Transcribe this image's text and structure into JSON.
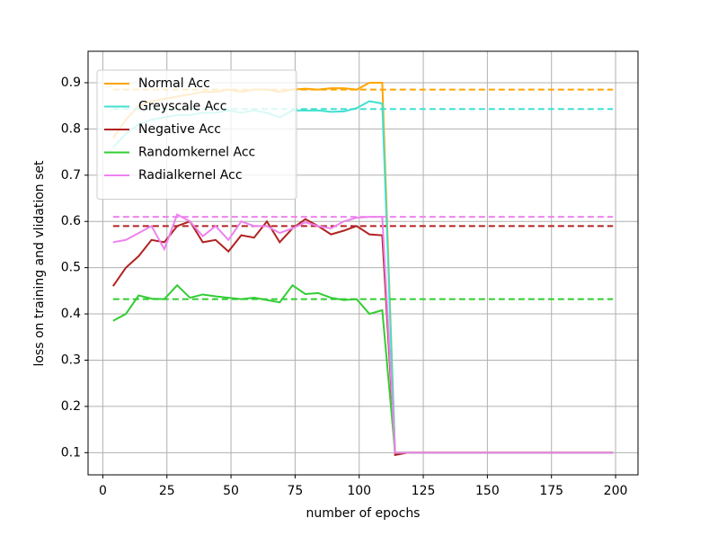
{
  "chart_data": {
    "type": "line",
    "xlabel": "number of epochs",
    "ylabel": "loss on training and vlidation set",
    "x": [
      4,
      9,
      14,
      19,
      24,
      29,
      34,
      39,
      44,
      49,
      54,
      59,
      64,
      69,
      74,
      79,
      84,
      89,
      94,
      99,
      104,
      109,
      114,
      119,
      124,
      129,
      134,
      139,
      144,
      149,
      154,
      159,
      164,
      169,
      174,
      179,
      184,
      189,
      194,
      199
    ],
    "xlim": [
      -5.75,
      208.75
    ],
    "xticks": [
      0,
      25,
      50,
      75,
      100,
      125,
      150,
      175,
      200
    ],
    "ylim": [
      0.052,
      0.968
    ],
    "yticks": [
      0.1,
      0.2,
      0.3,
      0.4,
      0.5,
      0.6,
      0.7,
      0.8,
      0.9
    ],
    "grid": true,
    "legend": "upper left",
    "series": [
      {
        "name": "Normal Acc",
        "color": "#ffa500",
        "dashed_value": 0.885,
        "values": [
          0.78,
          0.82,
          0.85,
          0.86,
          0.865,
          0.87,
          0.875,
          0.88,
          0.88,
          0.885,
          0.88,
          0.885,
          0.885,
          0.88,
          0.885,
          0.887,
          0.885,
          0.888,
          0.888,
          0.885,
          0.9,
          0.9,
          0.1,
          0.1,
          0.1,
          0.1,
          0.1,
          0.1,
          0.1,
          0.1,
          0.1,
          0.1,
          0.1,
          0.1,
          0.1,
          0.1,
          0.1,
          0.1,
          0.1,
          0.1
        ]
      },
      {
        "name": "Greyscale Acc",
        "color": "#40e0d0",
        "dashed_value": 0.843,
        "values": [
          0.76,
          0.79,
          0.81,
          0.82,
          0.825,
          0.83,
          0.83,
          0.835,
          0.835,
          0.84,
          0.835,
          0.84,
          0.835,
          0.825,
          0.84,
          0.84,
          0.84,
          0.837,
          0.838,
          0.845,
          0.86,
          0.855,
          0.1,
          0.1,
          0.1,
          0.1,
          0.1,
          0.1,
          0.1,
          0.1,
          0.1,
          0.1,
          0.1,
          0.1,
          0.1,
          0.1,
          0.1,
          0.1,
          0.1,
          0.1
        ]
      },
      {
        "name": "Negative Acc",
        "color": "#b22222",
        "dashed_value": 0.59,
        "values": [
          0.46,
          0.5,
          0.525,
          0.56,
          0.555,
          0.59,
          0.6,
          0.555,
          0.56,
          0.535,
          0.57,
          0.565,
          0.6,
          0.555,
          0.585,
          0.605,
          0.59,
          0.572,
          0.58,
          0.59,
          0.572,
          0.57,
          0.095,
          0.1,
          0.1,
          0.1,
          0.1,
          0.1,
          0.1,
          0.1,
          0.1,
          0.1,
          0.1,
          0.1,
          0.1,
          0.1,
          0.1,
          0.1,
          0.1,
          0.1
        ]
      },
      {
        "name": "Randomkernel Acc",
        "color": "#32cd32",
        "dashed_value": 0.432,
        "values": [
          0.385,
          0.4,
          0.44,
          0.433,
          0.432,
          0.462,
          0.435,
          0.442,
          0.438,
          0.435,
          0.432,
          0.435,
          0.43,
          0.425,
          0.462,
          0.443,
          0.445,
          0.435,
          0.43,
          0.432,
          0.4,
          0.408,
          0.1,
          0.1,
          0.1,
          0.1,
          0.1,
          0.1,
          0.1,
          0.1,
          0.1,
          0.1,
          0.1,
          0.1,
          0.1,
          0.1,
          0.1,
          0.1,
          0.1,
          0.1
        ]
      },
      {
        "name": "Radialkernel Acc",
        "color": "#ee82ee",
        "dashed_value": 0.61,
        "values": [
          0.555,
          0.56,
          0.575,
          0.59,
          0.54,
          0.615,
          0.6,
          0.568,
          0.59,
          0.56,
          0.6,
          0.59,
          0.59,
          0.575,
          0.585,
          0.598,
          0.59,
          0.585,
          0.6,
          0.608,
          0.61,
          0.61,
          0.1,
          0.1,
          0.1,
          0.1,
          0.1,
          0.1,
          0.1,
          0.1,
          0.1,
          0.1,
          0.1,
          0.1,
          0.1,
          0.1,
          0.1,
          0.1,
          0.1,
          0.1
        ]
      }
    ]
  }
}
